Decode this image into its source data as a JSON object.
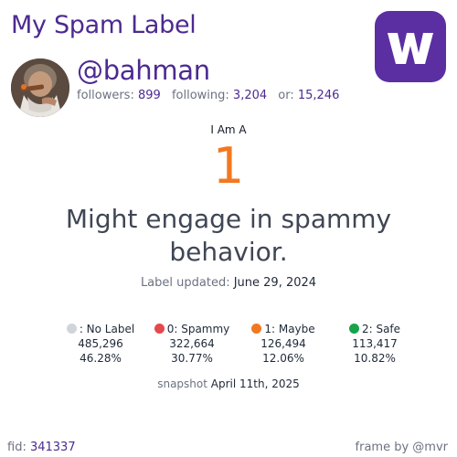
{
  "header": {
    "title": "My Spam Label",
    "logo_letter": "W",
    "logo_color": "#5b2fa2"
  },
  "profile": {
    "handle": "@bahman",
    "followers_label": "followers:",
    "followers": "899",
    "following_label": "following:",
    "following": "3,204",
    "or_label": "or:",
    "or": "15,246"
  },
  "label": {
    "intro": "I Am A",
    "value": "1",
    "value_color": "#f2781f",
    "description": "Might engage in spammy behavior.",
    "updated_label": "Label updated:",
    "updated_date": "June 29, 2024"
  },
  "distribution": [
    {
      "label": ": No Label",
      "count": "485,296",
      "percent": "46.28%",
      "color": "#d1d5db"
    },
    {
      "label": "0: Spammy",
      "count": "322,664",
      "percent": "30.77%",
      "color": "#e5484d"
    },
    {
      "label": "1: Maybe",
      "count": "126,494",
      "percent": "12.06%",
      "color": "#f2781f"
    },
    {
      "label": "2: Safe",
      "count": "113,417",
      "percent": "10.82%",
      "color": "#16a34a"
    }
  ],
  "snapshot": {
    "label": "snapshot",
    "date": "April 11th, 2025"
  },
  "footer": {
    "fid_label": "fid:",
    "fid": "341337",
    "credit": "frame by @mvr"
  }
}
